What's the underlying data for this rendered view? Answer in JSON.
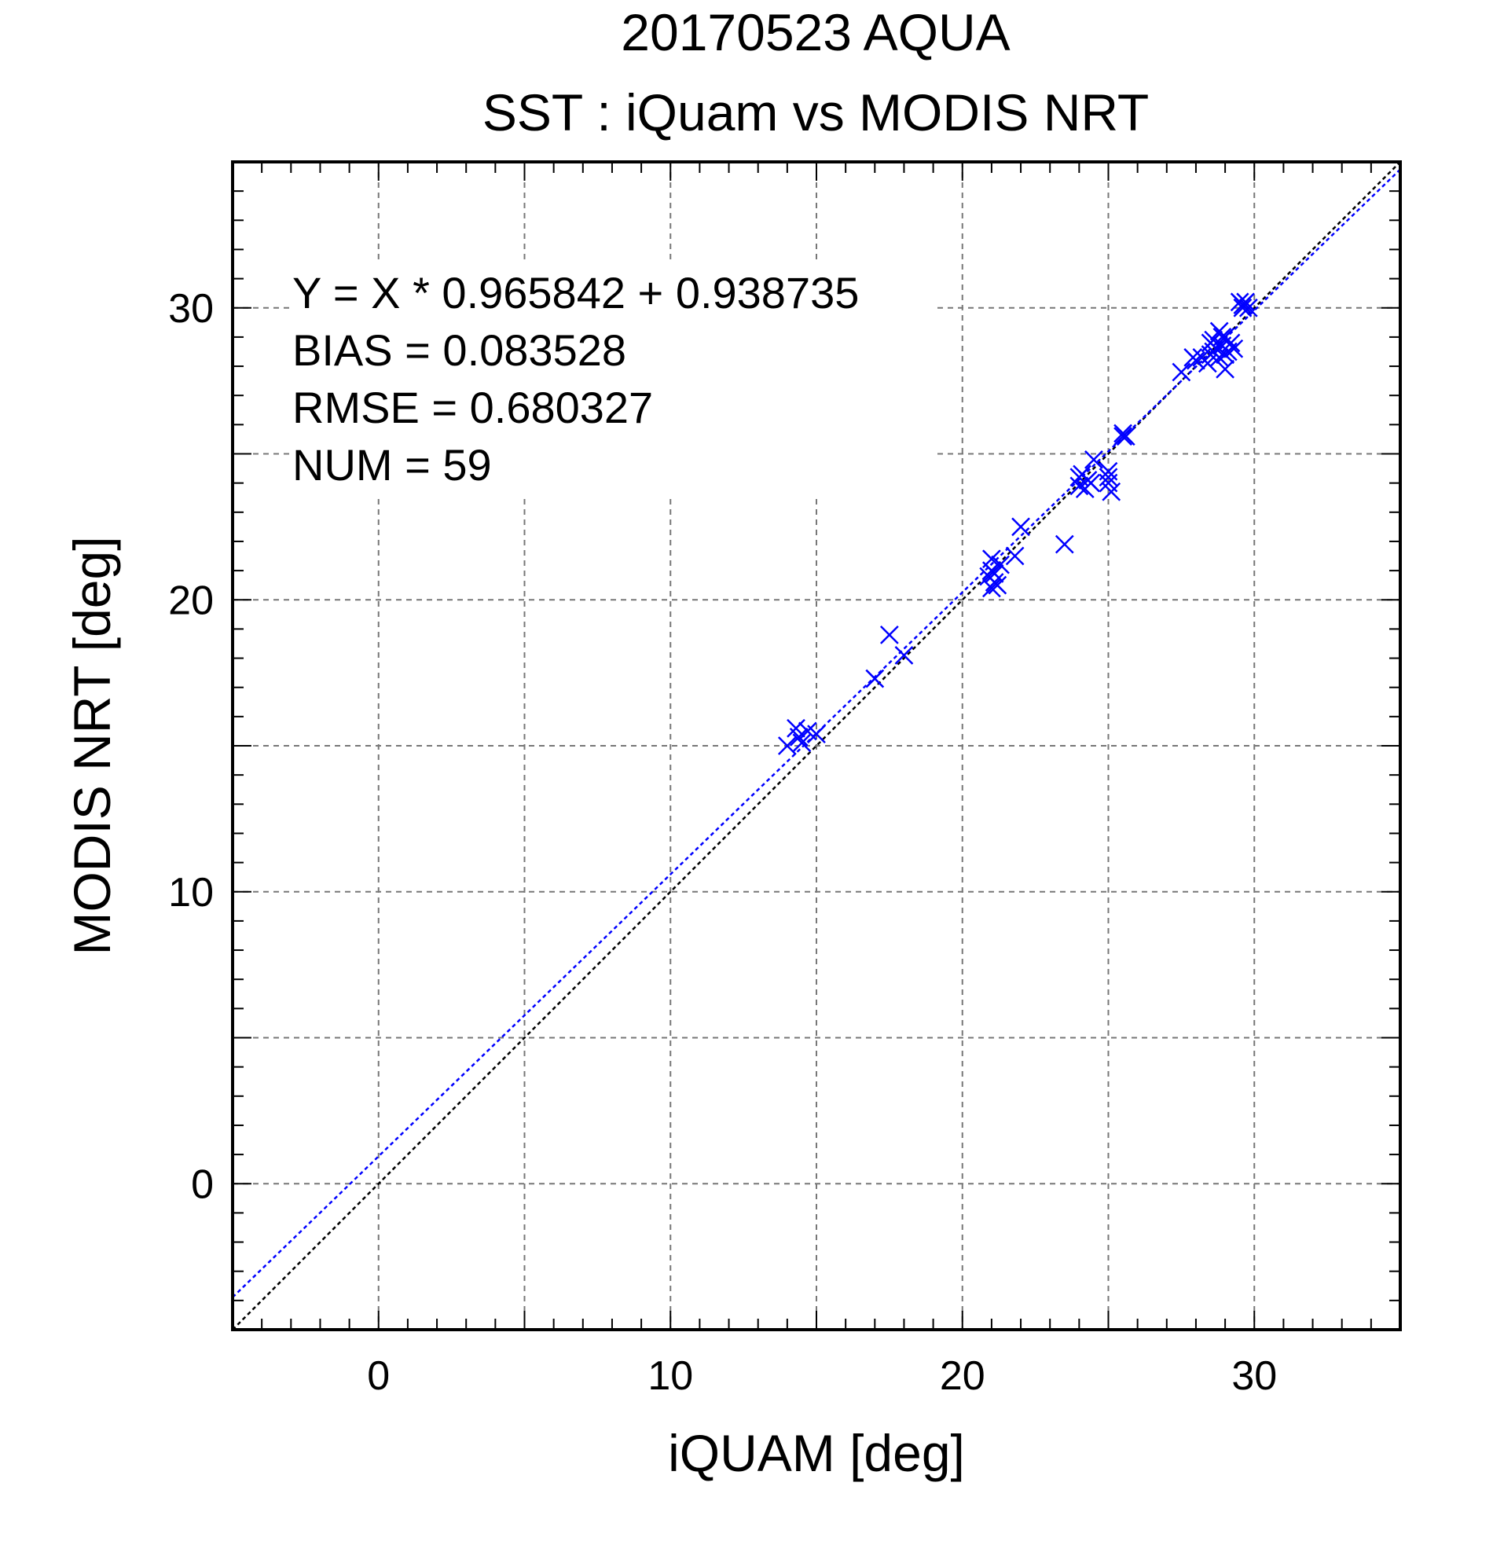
{
  "chart_data": {
    "type": "scatter",
    "title": "20170523 AQUA",
    "subtitle": "SST : iQuam vs MODIS NRT",
    "xlabel": "iQUAM [deg]",
    "ylabel": "MODIS NRT [deg]",
    "xlim": [
      -5,
      35
    ],
    "ylim": [
      -5,
      35
    ],
    "x_ticks": [
      0,
      10,
      20,
      30
    ],
    "y_ticks": [
      0,
      10,
      20,
      30
    ],
    "grid": true,
    "grid_step": 5,
    "stats": [
      "Y = X * 0.965842 + 0.938735",
      "BIAS = 0.083528",
      "RMSE = 0.680327",
      "NUM = 59"
    ],
    "fit": {
      "slope": 0.965842,
      "intercept": 0.938735,
      "color": "#0000ff"
    },
    "identity_color": "#000000",
    "marker_color": "#0000ff",
    "marker": "x",
    "points": [
      [
        14.0,
        15.0
      ],
      [
        14.3,
        15.6
      ],
      [
        14.5,
        15.1
      ],
      [
        14.7,
        15.5
      ],
      [
        15.0,
        15.4
      ],
      [
        17.0,
        17.3
      ],
      [
        17.5,
        18.8
      ],
      [
        18.0,
        18.1
      ],
      [
        20.9,
        20.8
      ],
      [
        21.0,
        21.4
      ],
      [
        21.0,
        20.4
      ],
      [
        21.1,
        20.6
      ],
      [
        21.3,
        21.2
      ],
      [
        21.8,
        21.5
      ],
      [
        22.0,
        22.5
      ],
      [
        23.5,
        21.9
      ],
      [
        24.0,
        23.9
      ],
      [
        24.1,
        24.3
      ],
      [
        24.2,
        23.8
      ],
      [
        24.5,
        24.8
      ],
      [
        25.0,
        24.4
      ],
      [
        25.0,
        24.0
      ],
      [
        25.1,
        23.7
      ],
      [
        25.5,
        25.7
      ],
      [
        25.6,
        25.6
      ],
      [
        27.5,
        27.8
      ],
      [
        28.0,
        28.2
      ],
      [
        28.2,
        28.3
      ],
      [
        28.5,
        28.4
      ],
      [
        28.6,
        28.9
      ],
      [
        28.8,
        29.2
      ],
      [
        28.9,
        28.7
      ],
      [
        29.0,
        27.9
      ],
      [
        29.1,
        28.5
      ],
      [
        29.5,
        30.2
      ],
      [
        29.6,
        30.1
      ],
      [
        29.8,
        30.0
      ],
      [
        28.7,
        28.6
      ],
      [
        28.9,
        29.0
      ],
      [
        29.0,
        28.4
      ],
      [
        29.2,
        28.8
      ],
      [
        28.4,
        28.1
      ],
      [
        24.3,
        24.1
      ],
      [
        24.0,
        24.2
      ],
      [
        25.0,
        24.2
      ],
      [
        21.1,
        20.9
      ],
      [
        21.0,
        21.0
      ],
      [
        14.4,
        15.3
      ],
      [
        28.6,
        28.5
      ],
      [
        29.7,
        30.2
      ],
      [
        29.3,
        28.6
      ],
      [
        27.9,
        28.3
      ],
      [
        28.8,
        28.3
      ],
      [
        25.5,
        25.6
      ],
      [
        24.4,
        24.0
      ],
      [
        21.2,
        20.5
      ],
      [
        29.0,
        29.0
      ],
      [
        28.5,
        28.8
      ],
      [
        29.6,
        30.0
      ]
    ]
  }
}
